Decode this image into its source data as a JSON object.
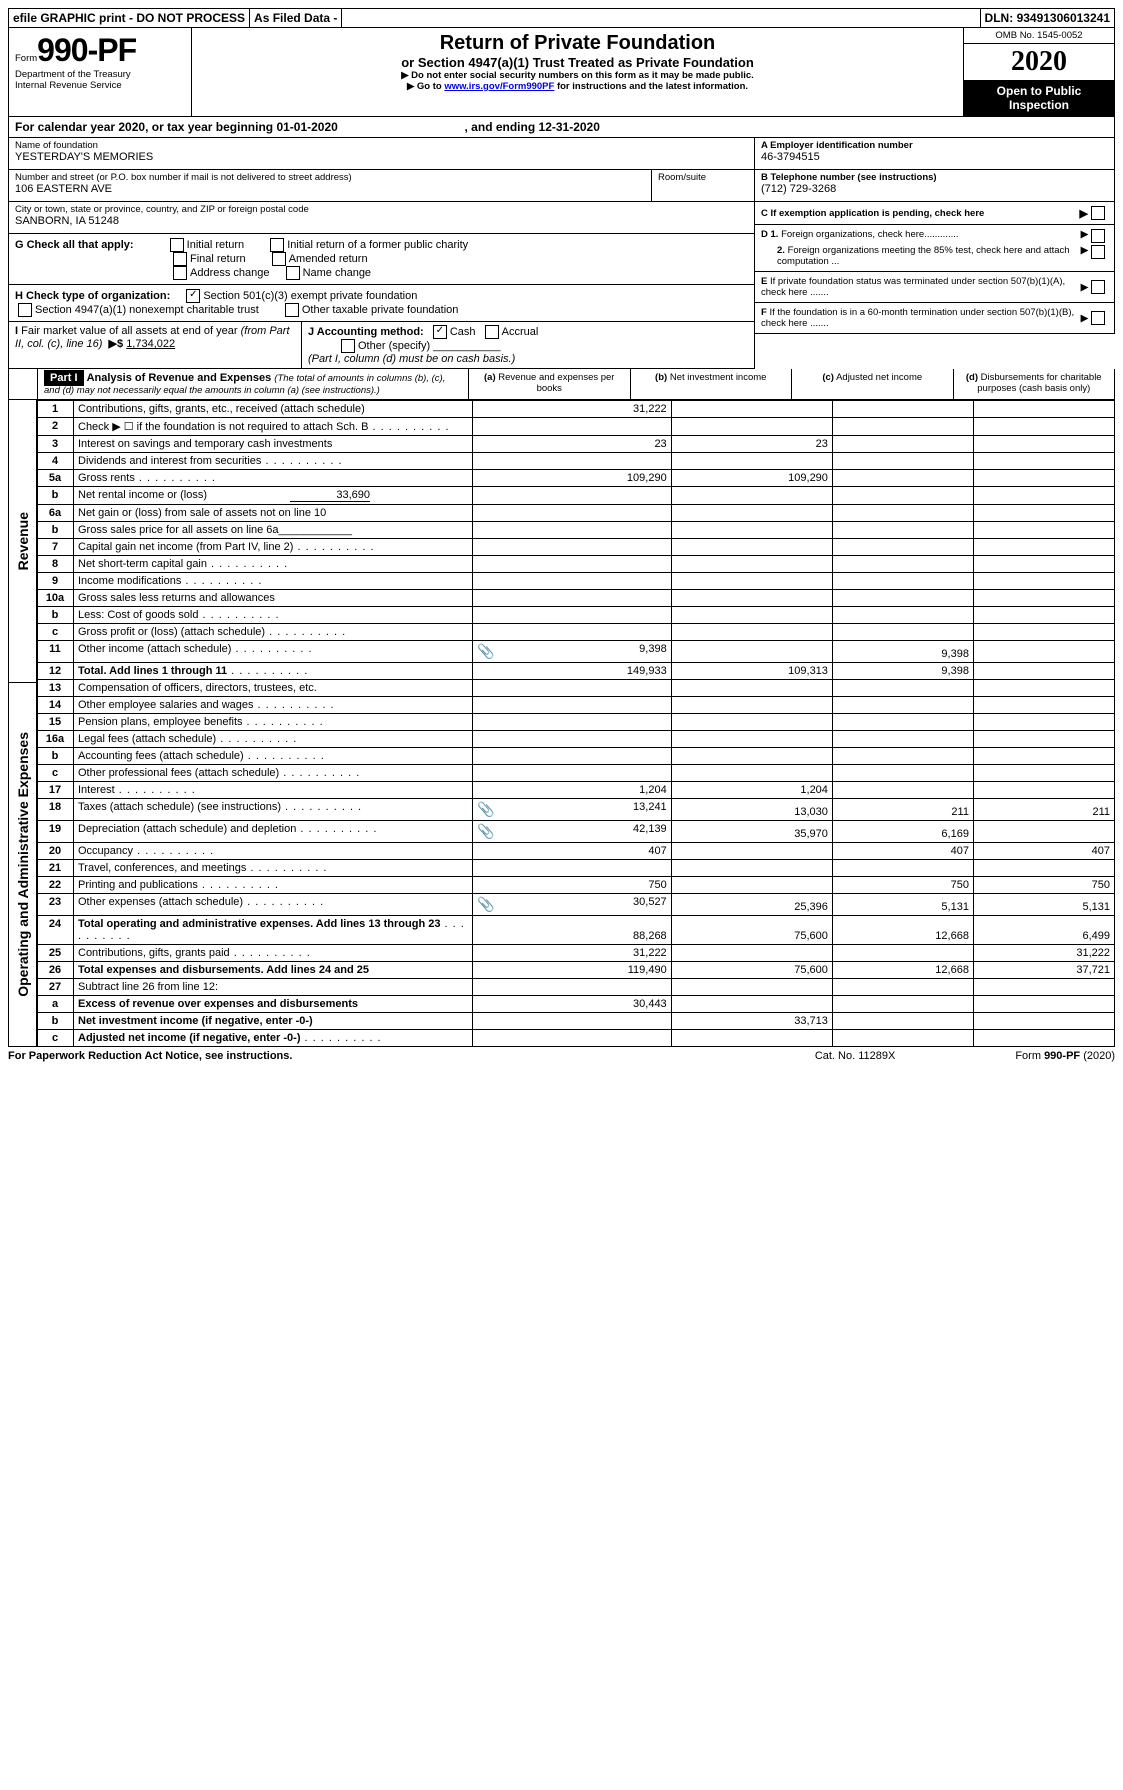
{
  "topbar": {
    "efile": "efile GRAPHIC print - DO NOT PROCESS",
    "asfiled": "As Filed Data -",
    "dln_label": "DLN:",
    "dln": "93491306013241"
  },
  "header": {
    "form_prefix": "Form",
    "form_no": "990-PF",
    "dept": "Department of the Treasury",
    "irs": "Internal Revenue Service",
    "title": "Return of Private Foundation",
    "subtitle": "or Section 4947(a)(1) Trust Treated as Private Foundation",
    "warn1": "▶ Do not enter social security numbers on this form as it may be made public.",
    "warn2_pre": "▶ Go to ",
    "warn2_link": "www.irs.gov/Form990PF",
    "warn2_post": " for instructions and the latest information.",
    "omb": "OMB No. 1545-0052",
    "year": "2020",
    "open": "Open to Public Inspection"
  },
  "period": {
    "line": "For calendar year 2020, or tax year beginning 01-01-2020",
    "end": ", and ending 12-31-2020"
  },
  "id": {
    "name_label": "Name of foundation",
    "name": "YESTERDAY'S MEMORIES",
    "street_label": "Number and street (or P.O. box number if mail is not delivered to street address)",
    "street": "106 EASTERN AVE",
    "room_label": "Room/suite",
    "city_label": "City or town, state or province, country, and ZIP or foreign postal code",
    "city": "SANBORN, IA  51248",
    "A_label": "A Employer identification number",
    "A": "46-3794515",
    "B_label": "B Telephone number (see instructions)",
    "B": "(712) 729-3268",
    "C": "C If exemption application is pending, check here",
    "D1": "D 1. Foreign organizations, check here.............",
    "D2": "2. Foreign organizations meeting the 85% test, check here and attach computation ...",
    "E": "E If private foundation status was terminated under section 507(b)(1)(A), check here .......",
    "F": "F If the foundation is in a 60-month termination under section 507(b)(1)(B), check here ......."
  },
  "G": {
    "label": "G Check all that apply:",
    "opts": [
      "Initial return",
      "Initial return of a former public charity",
      "Final return",
      "Amended return",
      "Address change",
      "Name change"
    ]
  },
  "H": {
    "label": "H Check type of organization:",
    "opt1": "Section 501(c)(3) exempt private foundation",
    "opt2": "Section 4947(a)(1) nonexempt charitable trust",
    "opt3": "Other taxable private foundation"
  },
  "I": {
    "label": "I Fair market value of all assets at end of year (from Part II, col. (c), line 16)",
    "arrow": "▶$",
    "val": "1,734,022"
  },
  "J": {
    "label": "J Accounting method:",
    "cash": "Cash",
    "accrual": "Accrual",
    "other": "Other (specify)",
    "note": "(Part I, column (d) must be on cash basis.)"
  },
  "part1": {
    "label": "Part I",
    "title": "Analysis of Revenue and Expenses",
    "sub": "(The total of amounts in columns (b), (c), and (d) may not necessarily equal the amounts in column (a) (see instructions).)",
    "col_a": "(a) Revenue and expenses per books",
    "col_b": "(b) Net investment income",
    "col_c": "(c) Adjusted net income",
    "col_d": "(d) Disbursements for charitable purposes (cash basis only)"
  },
  "sections": {
    "revenue": "Revenue",
    "expenses": "Operating and Administrative Expenses"
  },
  "rows": [
    {
      "n": "1",
      "t": "Contributions, gifts, grants, etc., received (attach schedule)",
      "a": "31,222"
    },
    {
      "n": "2",
      "t": "Check ▶ ☐ if the foundation is not required to attach Sch. B",
      "dots": true
    },
    {
      "n": "3",
      "t": "Interest on savings and temporary cash investments",
      "a": "23",
      "b": "23"
    },
    {
      "n": "4",
      "t": "Dividends and interest from securities",
      "dots": true
    },
    {
      "n": "5a",
      "t": "Gross rents",
      "dots": true,
      "a": "109,290",
      "b": "109,290"
    },
    {
      "n": "b",
      "t": "Net rental income or (loss)",
      "inline": "33,690"
    },
    {
      "n": "6a",
      "t": "Net gain or (loss) from sale of assets not on line 10"
    },
    {
      "n": "b",
      "t": "Gross sales price for all assets on line 6a____________"
    },
    {
      "n": "7",
      "t": "Capital gain net income (from Part IV, line 2)",
      "dots": true
    },
    {
      "n": "8",
      "t": "Net short-term capital gain",
      "dots": true
    },
    {
      "n": "9",
      "t": "Income modifications",
      "dots": true
    },
    {
      "n": "10a",
      "t": "Gross sales less returns and allowances"
    },
    {
      "n": "b",
      "t": "Less: Cost of goods sold",
      "dots": true
    },
    {
      "n": "c",
      "t": "Gross profit or (loss) (attach schedule)",
      "dots": true
    },
    {
      "n": "11",
      "t": "Other income (attach schedule)",
      "dots": true,
      "clip": true,
      "a": "9,398",
      "c": "9,398"
    },
    {
      "n": "12",
      "t": "Total. Add lines 1 through 11",
      "dots": true,
      "bold": true,
      "a": "149,933",
      "b": "109,313",
      "c": "9,398"
    },
    {
      "n": "13",
      "t": "Compensation of officers, directors, trustees, etc."
    },
    {
      "n": "14",
      "t": "Other employee salaries and wages",
      "dots": true
    },
    {
      "n": "15",
      "t": "Pension plans, employee benefits",
      "dots": true
    },
    {
      "n": "16a",
      "t": "Legal fees (attach schedule)",
      "dots": true
    },
    {
      "n": "b",
      "t": "Accounting fees (attach schedule)",
      "dots": true
    },
    {
      "n": "c",
      "t": "Other professional fees (attach schedule)",
      "dots": true
    },
    {
      "n": "17",
      "t": "Interest",
      "dots": true,
      "a": "1,204",
      "b": "1,204"
    },
    {
      "n": "18",
      "t": "Taxes (attach schedule) (see instructions)",
      "dots": true,
      "clip": true,
      "a": "13,241",
      "b": "13,030",
      "c": "211",
      "d": "211"
    },
    {
      "n": "19",
      "t": "Depreciation (attach schedule) and depletion",
      "dots": true,
      "clip": true,
      "a": "42,139",
      "b": "35,970",
      "c": "6,169"
    },
    {
      "n": "20",
      "t": "Occupancy",
      "dots": true,
      "a": "407",
      "c": "407",
      "d": "407"
    },
    {
      "n": "21",
      "t": "Travel, conferences, and meetings",
      "dots": true
    },
    {
      "n": "22",
      "t": "Printing and publications",
      "dots": true,
      "a": "750",
      "c": "750",
      "d": "750"
    },
    {
      "n": "23",
      "t": "Other expenses (attach schedule)",
      "dots": true,
      "clip": true,
      "a": "30,527",
      "b": "25,396",
      "c": "5,131",
      "d": "5,131"
    },
    {
      "n": "24",
      "t": "Total operating and administrative expenses. Add lines 13 through 23",
      "dots": true,
      "bold": true,
      "a": "88,268",
      "b": "75,600",
      "c": "12,668",
      "d": "6,499"
    },
    {
      "n": "25",
      "t": "Contributions, gifts, grants paid",
      "dots": true,
      "a": "31,222",
      "d": "31,222"
    },
    {
      "n": "26",
      "t": "Total expenses and disbursements. Add lines 24 and 25",
      "bold": true,
      "a": "119,490",
      "b": "75,600",
      "c": "12,668",
      "d": "37,721"
    },
    {
      "n": "27",
      "t": "Subtract line 26 from line 12:",
      "bold": false
    },
    {
      "n": "a",
      "t": "Excess of revenue over expenses and disbursements",
      "bold": true,
      "a": "30,443"
    },
    {
      "n": "b",
      "t": "Net investment income (if negative, enter -0-)",
      "bold": true,
      "b": "33,713"
    },
    {
      "n": "c",
      "t": "Adjusted net income (if negative, enter -0-)",
      "dots": true,
      "bold": true
    }
  ],
  "footer": {
    "left": "For Paperwork Reduction Act Notice, see instructions.",
    "mid": "Cat. No. 11289X",
    "right_pre": "Form ",
    "right_form": "990-PF",
    "right_post": " (2020)"
  }
}
